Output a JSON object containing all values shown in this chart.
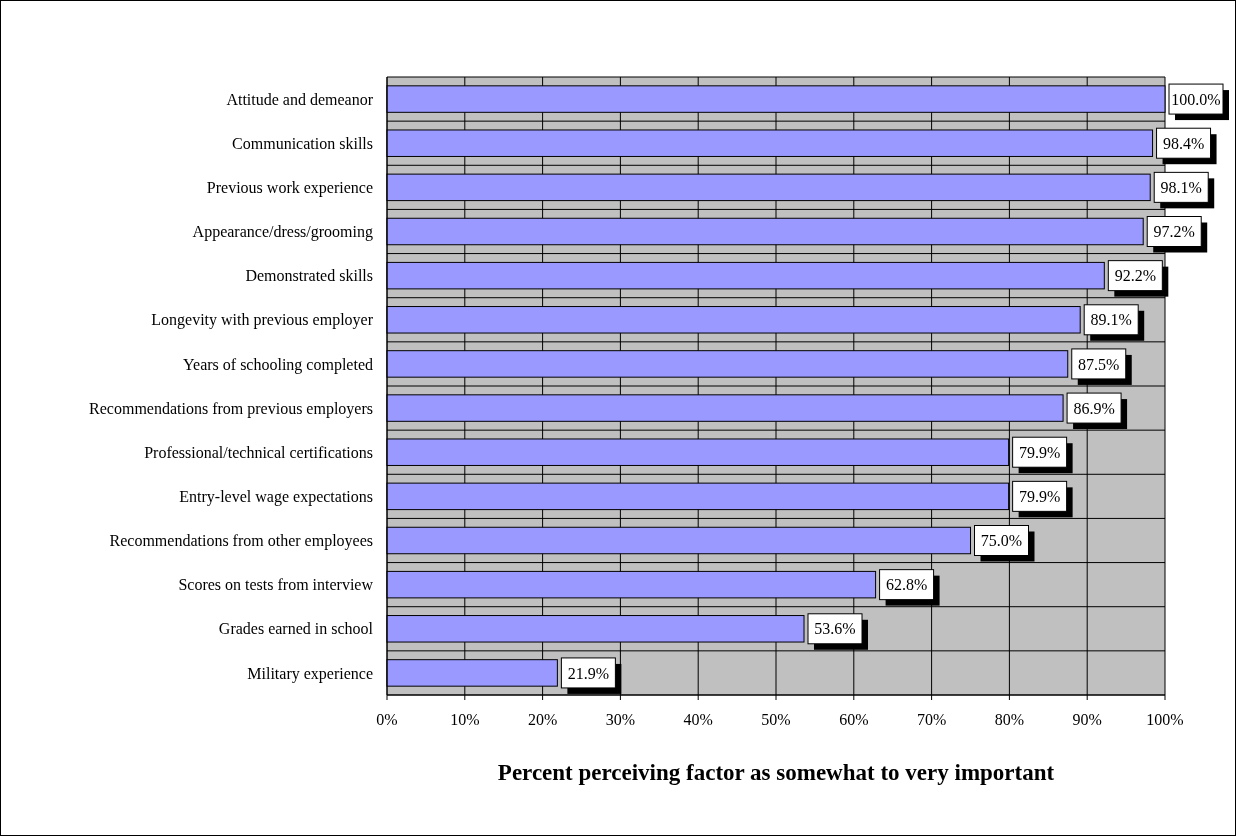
{
  "chart_data": {
    "type": "bar",
    "orientation": "horizontal",
    "xlabel": "Percent perceiving factor as somewhat to very important",
    "categories": [
      "Attitude and demeanor",
      "Communication skills",
      "Previous work experience",
      "Appearance/dress/grooming",
      "Demonstrated skills",
      "Longevity with previous employer",
      "Years of schooling completed",
      "Recommendations from previous employers",
      "Professional/technical certifications",
      "Entry-level wage expectations",
      "Recommendations from other employees",
      "Scores on tests from interview",
      "Grades earned in school",
      "Military experience"
    ],
    "values": [
      100.0,
      98.4,
      98.1,
      97.2,
      92.2,
      89.1,
      87.5,
      86.9,
      79.9,
      79.9,
      75.0,
      62.8,
      53.6,
      21.9
    ],
    "value_labels": [
      "100.0%",
      "98.4%",
      "98.1%",
      "97.2%",
      "92.2%",
      "89.1%",
      "87.5%",
      "86.9%",
      "79.9%",
      "79.9%",
      "75.0%",
      "62.8%",
      "53.6%",
      "21.9%"
    ],
    "color": "#9999ff",
    "xlim": [
      0,
      100
    ],
    "xticks": [
      {
        "value": 0,
        "label": "0%"
      },
      {
        "value": 10,
        "label": "10%"
      },
      {
        "value": 20,
        "label": "20%"
      },
      {
        "value": 30,
        "label": "30%"
      },
      {
        "value": 40,
        "label": "40%"
      },
      {
        "value": 50,
        "label": "50%"
      },
      {
        "value": 60,
        "label": "60%"
      },
      {
        "value": 70,
        "label": "70%"
      },
      {
        "value": 80,
        "label": "80%"
      },
      {
        "value": 90,
        "label": "90%"
      },
      {
        "value": 100,
        "label": "100%"
      }
    ],
    "grid": true
  }
}
